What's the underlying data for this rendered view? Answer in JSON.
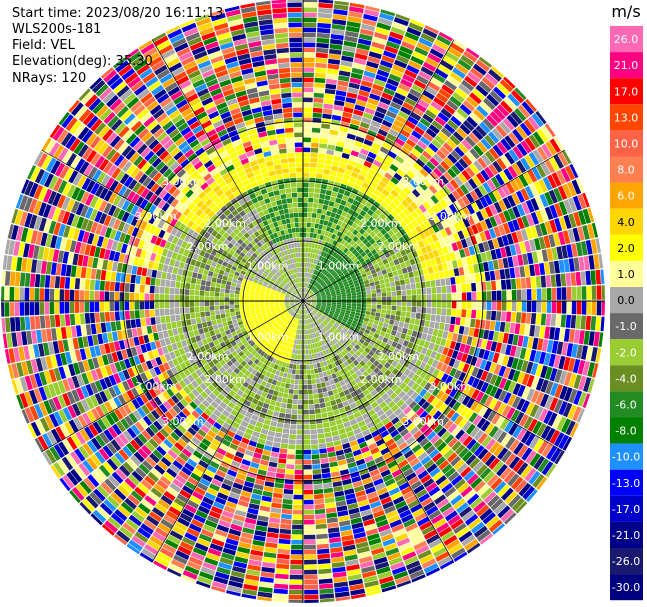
{
  "header": {
    "start_time": "Start time: 2023/08/20 16:11:13",
    "instrument": "WLS200s-181",
    "field": "Field: VEL",
    "elevation": "Elevation(deg): 35.30",
    "nrays": "NRays: 120"
  },
  "chart_data": {
    "type": "heatmap",
    "projection": "polar (PPI)",
    "field": "VEL",
    "n_rays": 120,
    "elevation_deg": 35.3,
    "range_rings_km": [
      1.0,
      2.0,
      3.0
    ],
    "range_ring_labels": [
      "1.00km",
      "2.00km",
      "3.00km"
    ],
    "grid": true,
    "colorbar": {
      "unit": "m/s",
      "placement": "right",
      "tick_labels": [
        "26.0",
        "21.0",
        "17.0",
        "13.0",
        "10.0",
        "8.0",
        "6.0",
        "4.0",
        "2.0",
        "1.0",
        "0.0",
        "-1.0",
        "-2.0",
        "-4.0",
        "-6.0",
        "-8.0",
        "-10.0",
        "-13.0",
        "-17.0",
        "-21.0",
        "-26.0",
        "-30.0"
      ],
      "colors": [
        "#ff69b4",
        "#ff0080",
        "#ff0000",
        "#ff4500",
        "#ff6347",
        "#ff7f50",
        "#ffa500",
        "#ffd700",
        "#ffff00",
        "#ffff99",
        "#a9a9a9",
        "#696969",
        "#9acd32",
        "#6b8e23",
        "#228b22",
        "#008000",
        "#1e90ff",
        "#0000ff",
        "#0000cd",
        "#00008b",
        "#191970",
        "#000080"
      ]
    }
  }
}
